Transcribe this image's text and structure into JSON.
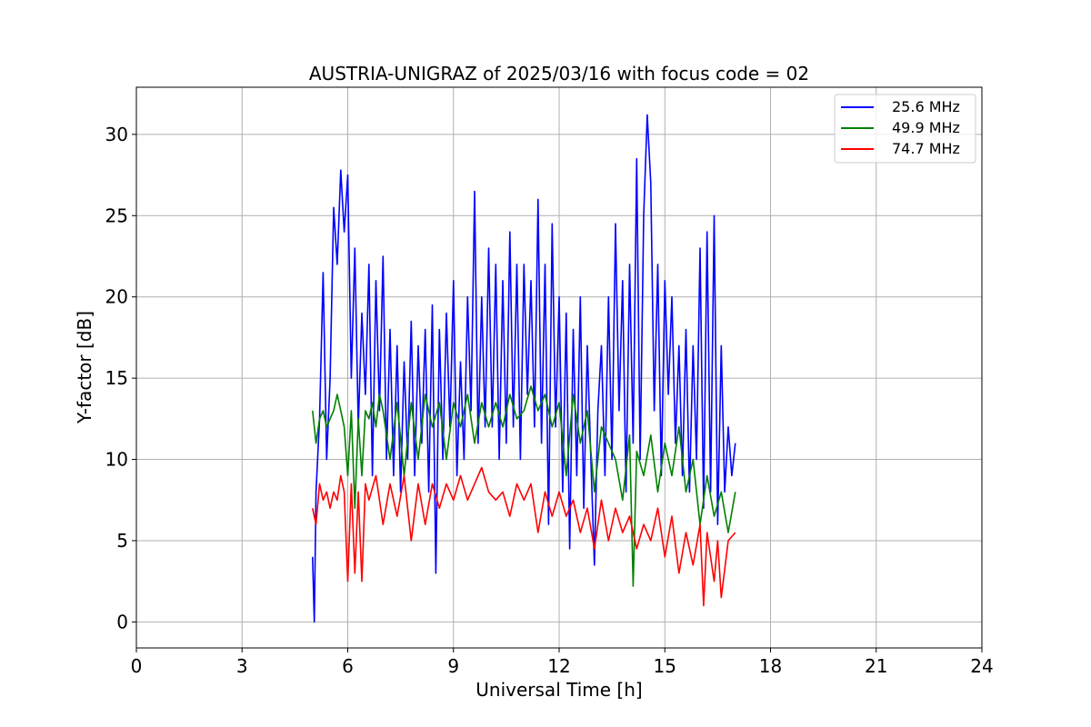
{
  "chart_data": {
    "type": "line",
    "title": "AUSTRIA-UNIGRAZ of 2025/03/16 with focus code = 02",
    "xlabel": "Universal Time [h]",
    "ylabel": "Y-factor [dB]",
    "xlim": [
      0,
      24
    ],
    "ylim": [
      -1.6,
      32.9
    ],
    "xticks": [
      0,
      3,
      6,
      9,
      12,
      15,
      18,
      21,
      24
    ],
    "yticks": [
      0,
      5,
      10,
      15,
      20,
      25,
      30
    ],
    "grid": true,
    "legend_position": "top-right",
    "series": [
      {
        "name": "25.6 MHz",
        "color": "#0000ff",
        "x": [
          5.0,
          5.05,
          5.1,
          5.2,
          5.3,
          5.4,
          5.5,
          5.6,
          5.7,
          5.8,
          5.9,
          6.0,
          6.1,
          6.2,
          6.3,
          6.4,
          6.5,
          6.6,
          6.7,
          6.8,
          6.9,
          7.0,
          7.1,
          7.2,
          7.3,
          7.4,
          7.5,
          7.6,
          7.7,
          7.8,
          7.9,
          8.0,
          8.1,
          8.2,
          8.3,
          8.4,
          8.5,
          8.6,
          8.7,
          8.8,
          8.9,
          9.0,
          9.1,
          9.2,
          9.3,
          9.4,
          9.5,
          9.6,
          9.7,
          9.8,
          9.9,
          10.0,
          10.1,
          10.2,
          10.3,
          10.4,
          10.5,
          10.6,
          10.7,
          10.8,
          10.9,
          11.0,
          11.1,
          11.2,
          11.3,
          11.4,
          11.5,
          11.6,
          11.7,
          11.8,
          11.9,
          12.0,
          12.1,
          12.2,
          12.3,
          12.4,
          12.5,
          12.6,
          12.7,
          12.8,
          12.9,
          13.0,
          13.1,
          13.2,
          13.3,
          13.4,
          13.5,
          13.6,
          13.7,
          13.8,
          13.9,
          14.0,
          14.1,
          14.2,
          14.3,
          14.4,
          14.5,
          14.6,
          14.7,
          14.8,
          14.9,
          15.0,
          15.1,
          15.2,
          15.3,
          15.4,
          15.5,
          15.6,
          15.7,
          15.8,
          15.9,
          16.0,
          16.1,
          16.2,
          16.3,
          16.4,
          16.5,
          16.6,
          16.7,
          16.8,
          16.9,
          17.0
        ],
        "y": [
          4.0,
          0.0,
          8.0,
          12.5,
          21.5,
          10.0,
          15.0,
          25.5,
          22.0,
          27.8,
          24.0,
          27.5,
          15.0,
          23.0,
          12.0,
          19.0,
          14.0,
          22.0,
          9.0,
          21.0,
          13.0,
          22.5,
          10.0,
          18.0,
          9.0,
          17.0,
          8.0,
          16.0,
          10.0,
          18.5,
          9.0,
          17.0,
          11.0,
          18.0,
          8.0,
          19.5,
          3.0,
          18.0,
          10.0,
          19.0,
          12.0,
          21.0,
          9.0,
          16.0,
          10.0,
          20.0,
          13.0,
          26.5,
          11.0,
          20.0,
          12.0,
          23.0,
          12.0,
          22.0,
          10.0,
          21.0,
          11.0,
          24.0,
          12.0,
          22.0,
          10.0,
          22.0,
          14.0,
          21.0,
          12.0,
          26.0,
          11.0,
          22.0,
          6.0,
          24.5,
          12.0,
          20.0,
          8.0,
          19.0,
          4.5,
          18.0,
          9.0,
          20.0,
          7.0,
          17.0,
          10.0,
          3.5,
          13.0,
          17.0,
          9.0,
          20.0,
          10.0,
          24.5,
          13.0,
          21.0,
          8.0,
          22.0,
          11.0,
          28.5,
          10.0,
          25.0,
          31.2,
          27.0,
          13.0,
          22.0,
          9.0,
          21.0,
          14.0,
          20.0,
          11.0,
          17.0,
          9.0,
          18.0,
          8.0,
          17.0,
          10.0,
          23.0,
          7.0,
          24.0,
          8.0,
          25.0,
          6.0,
          17.0,
          8.0,
          12.0,
          9.0,
          11.0
        ]
      },
      {
        "name": "49.9 MHz",
        "color": "#008000",
        "x": [
          5.0,
          5.1,
          5.2,
          5.3,
          5.4,
          5.5,
          5.6,
          5.7,
          5.8,
          5.9,
          6.0,
          6.1,
          6.2,
          6.3,
          6.4,
          6.5,
          6.6,
          6.7,
          6.8,
          6.9,
          7.0,
          7.2,
          7.4,
          7.6,
          7.8,
          8.0,
          8.2,
          8.4,
          8.6,
          8.8,
          9.0,
          9.2,
          9.4,
          9.6,
          9.8,
          10.0,
          10.2,
          10.4,
          10.6,
          10.8,
          11.0,
          11.2,
          11.4,
          11.6,
          11.8,
          12.0,
          12.2,
          12.4,
          12.6,
          12.8,
          13.0,
          13.2,
          13.4,
          13.6,
          13.8,
          14.0,
          14.1,
          14.2,
          14.4,
          14.6,
          14.8,
          15.0,
          15.2,
          15.4,
          15.6,
          15.8,
          16.0,
          16.2,
          16.4,
          16.6,
          16.8,
          17.0
        ],
        "y": [
          13.0,
          11.0,
          12.5,
          13.0,
          12.0,
          12.5,
          13.0,
          14.0,
          13.0,
          12.0,
          9.0,
          13.0,
          7.0,
          12.5,
          9.0,
          13.0,
          12.5,
          13.5,
          12.0,
          14.0,
          13.0,
          10.0,
          13.5,
          9.0,
          13.5,
          10.0,
          14.0,
          12.0,
          13.5,
          10.0,
          13.5,
          12.0,
          14.0,
          11.0,
          13.5,
          12.0,
          13.5,
          12.0,
          14.0,
          12.5,
          13.0,
          14.5,
          13.0,
          14.0,
          12.0,
          13.5,
          9.0,
          14.0,
          11.0,
          13.0,
          8.0,
          12.0,
          11.0,
          10.0,
          7.5,
          11.5,
          2.2,
          10.5,
          9.0,
          11.5,
          8.0,
          11.0,
          9.0,
          12.0,
          8.0,
          10.0,
          6.0,
          9.0,
          6.5,
          8.0,
          5.5,
          8.0
        ]
      },
      {
        "name": "74.7 MHz",
        "color": "#ff0000",
        "x": [
          5.0,
          5.1,
          5.2,
          5.3,
          5.4,
          5.5,
          5.6,
          5.7,
          5.8,
          5.9,
          6.0,
          6.1,
          6.2,
          6.3,
          6.4,
          6.5,
          6.6,
          6.8,
          7.0,
          7.2,
          7.4,
          7.6,
          7.8,
          8.0,
          8.2,
          8.4,
          8.6,
          8.8,
          9.0,
          9.2,
          9.4,
          9.6,
          9.8,
          10.0,
          10.2,
          10.4,
          10.6,
          10.8,
          11.0,
          11.2,
          11.4,
          11.6,
          11.8,
          12.0,
          12.2,
          12.4,
          12.6,
          12.8,
          13.0,
          13.2,
          13.4,
          13.6,
          13.8,
          14.0,
          14.2,
          14.4,
          14.6,
          14.8,
          15.0,
          15.2,
          15.4,
          15.6,
          15.8,
          16.0,
          16.1,
          16.2,
          16.3,
          16.4,
          16.5,
          16.6,
          16.8,
          17.0
        ],
        "y": [
          7.0,
          6.0,
          8.5,
          7.5,
          8.0,
          7.0,
          8.0,
          7.5,
          9.0,
          8.0,
          2.5,
          8.5,
          3.0,
          8.0,
          2.5,
          8.5,
          7.5,
          9.0,
          6.0,
          8.5,
          6.5,
          9.0,
          5.0,
          8.5,
          6.0,
          8.5,
          7.0,
          8.5,
          7.5,
          9.0,
          7.5,
          8.5,
          9.5,
          8.0,
          7.5,
          8.0,
          6.5,
          8.5,
          7.5,
          8.5,
          5.5,
          8.0,
          6.5,
          8.0,
          6.5,
          7.5,
          5.5,
          7.0,
          4.5,
          7.5,
          5.0,
          7.0,
          5.5,
          6.5,
          4.5,
          6.0,
          5.0,
          7.0,
          4.0,
          6.5,
          3.0,
          5.5,
          3.5,
          6.0,
          1.0,
          5.5,
          4.0,
          2.5,
          5.0,
          1.5,
          5.0,
          5.5
        ]
      }
    ]
  }
}
